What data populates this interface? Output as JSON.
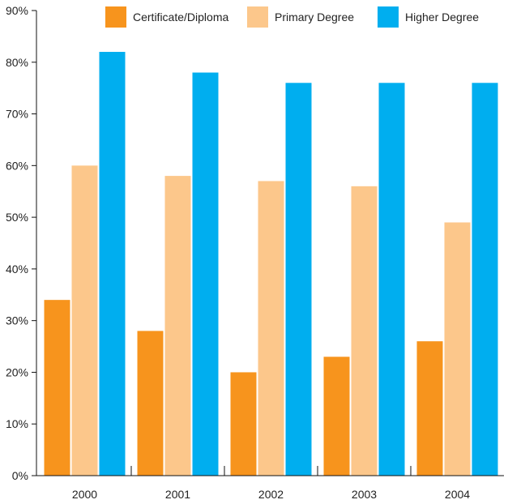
{
  "chart_data": {
    "type": "bar",
    "title": "",
    "xlabel": "",
    "ylabel": "",
    "categories": [
      "2000",
      "2001",
      "2002",
      "2003",
      "2004"
    ],
    "ylim": [
      0,
      90
    ],
    "yticks": [
      0,
      10,
      20,
      30,
      40,
      50,
      60,
      70,
      80,
      90
    ],
    "ytick_suffix": "%",
    "grid": false,
    "legend_position": "top",
    "series": [
      {
        "name": "Certificate/Diploma",
        "color": "#f7941d",
        "values": [
          34,
          28,
          20,
          23,
          26
        ]
      },
      {
        "name": "Primary Degree",
        "color": "#fcc78b",
        "values": [
          60,
          58,
          57,
          56,
          49
        ]
      },
      {
        "name": "Higher Degree",
        "color": "#00aeef",
        "values": [
          82,
          78,
          76,
          76,
          76
        ]
      }
    ]
  }
}
